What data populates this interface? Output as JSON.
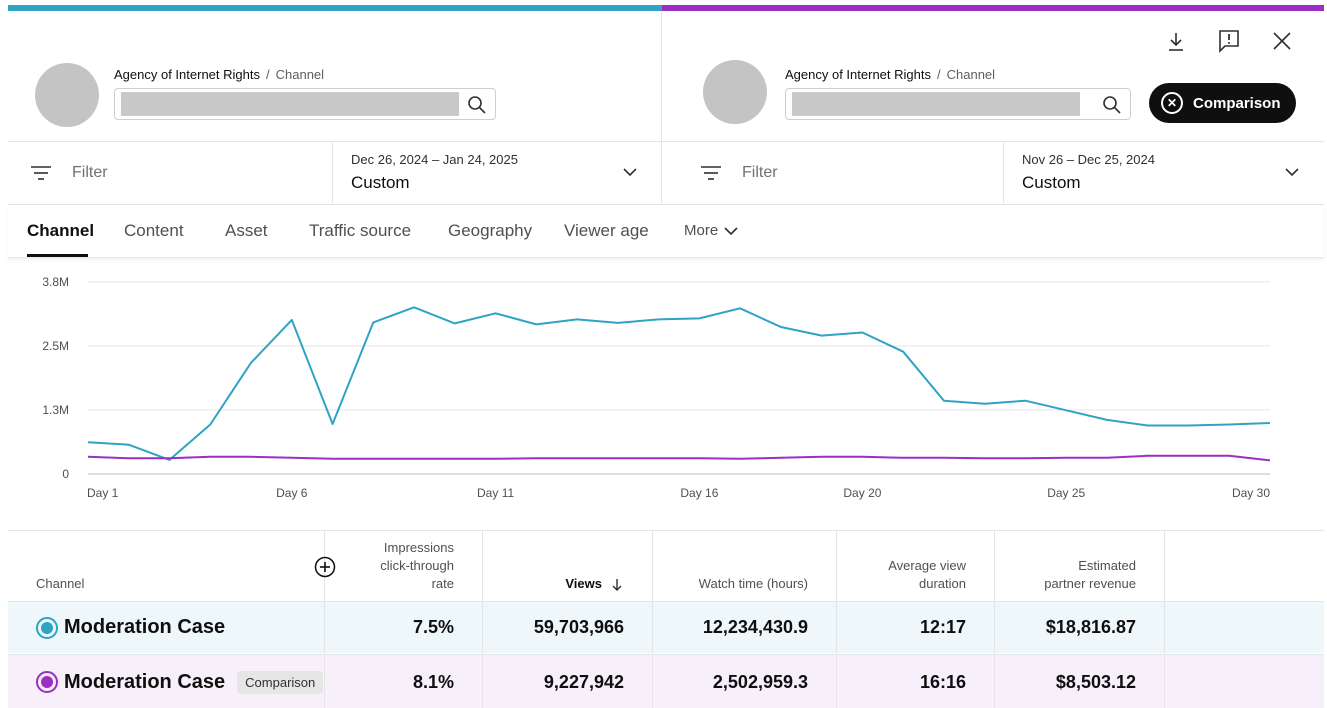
{
  "colors": {
    "primary_series": "#2fa3c4",
    "comparison_series": "#9a2fc2"
  },
  "left_panel": {
    "breadcrumb": [
      "Agency of Internet Rights",
      "/",
      "Channel"
    ],
    "filter_placeholder": "Filter",
    "date_range": "Dec 26, 2024 – Jan 24, 2025",
    "date_label": "Custom"
  },
  "right_panel": {
    "breadcrumb": [
      "Agency of Internet Rights",
      "/",
      "Channel"
    ],
    "filter_placeholder": "Filter",
    "date_range": "Nov 26 – Dec 25, 2024",
    "date_label": "Custom",
    "comparison_button": "Comparison",
    "icons": [
      "download-icon",
      "feedback-icon",
      "close-icon"
    ]
  },
  "tabs": [
    "Channel",
    "Content",
    "Asset",
    "Traffic source",
    "Geography",
    "Viewer age",
    "More"
  ],
  "active_tab": "Channel",
  "chart_data": {
    "type": "line",
    "ylim": [
      0,
      3800000
    ],
    "yticks": [
      "0",
      "1.3M",
      "2.5M",
      "3.8M"
    ],
    "xtick_labels": [
      "Day 1",
      "Day 6",
      "Day 11",
      "Day 16",
      "Day 20",
      "Day 25",
      "Day 30"
    ],
    "x": [
      1,
      2,
      3,
      4,
      5,
      6,
      7,
      8,
      9,
      10,
      11,
      12,
      13,
      14,
      15,
      16,
      17,
      18,
      19,
      20,
      21,
      22,
      23,
      24,
      25,
      26,
      27,
      28,
      29,
      30
    ],
    "series": [
      {
        "color": "#2fa3c4",
        "values": [
          630000,
          580000,
          280000,
          980000,
          2200000,
          3050000,
          990000,
          3000000,
          3300000,
          2980000,
          3180000,
          2960000,
          3060000,
          2990000,
          3060000,
          3080000,
          3280000,
          2910000,
          2740000,
          2800000,
          2420000,
          1450000,
          1390000,
          1450000,
          1260000,
          1070000,
          960000,
          960000,
          980000,
          1010000
        ]
      },
      {
        "color": "#9a2fc2",
        "values": [
          340000,
          310000,
          310000,
          340000,
          340000,
          320000,
          300000,
          300000,
          300000,
          300000,
          300000,
          310000,
          310000,
          310000,
          310000,
          310000,
          300000,
          320000,
          340000,
          340000,
          320000,
          320000,
          310000,
          310000,
          320000,
          320000,
          360000,
          360000,
          360000,
          270000
        ]
      }
    ]
  },
  "table": {
    "headers": [
      "Channel",
      "Impressions click-through rate",
      "Views",
      "Watch time (hours)",
      "Average view duration",
      "Estimated partner revenue"
    ],
    "header_lines": {
      "ctr": [
        "Impressions",
        "click-through",
        "rate"
      ],
      "avd": [
        "Average view",
        "duration"
      ],
      "rev": [
        "Estimated",
        "partner revenue"
      ]
    },
    "rows": [
      {
        "name": "Moderation Case",
        "badge": "",
        "ctr": "7.5%",
        "views": "59,703,966",
        "watch": "12,234,430.9",
        "avd": "12:17",
        "revenue": "$18,816.87"
      },
      {
        "name": "Moderation Case",
        "badge": "Comparison",
        "ctr": "8.1%",
        "views": "9,227,942",
        "watch": "2,502,959.3",
        "avd": "16:16",
        "revenue": "$8,503.12"
      }
    ]
  }
}
